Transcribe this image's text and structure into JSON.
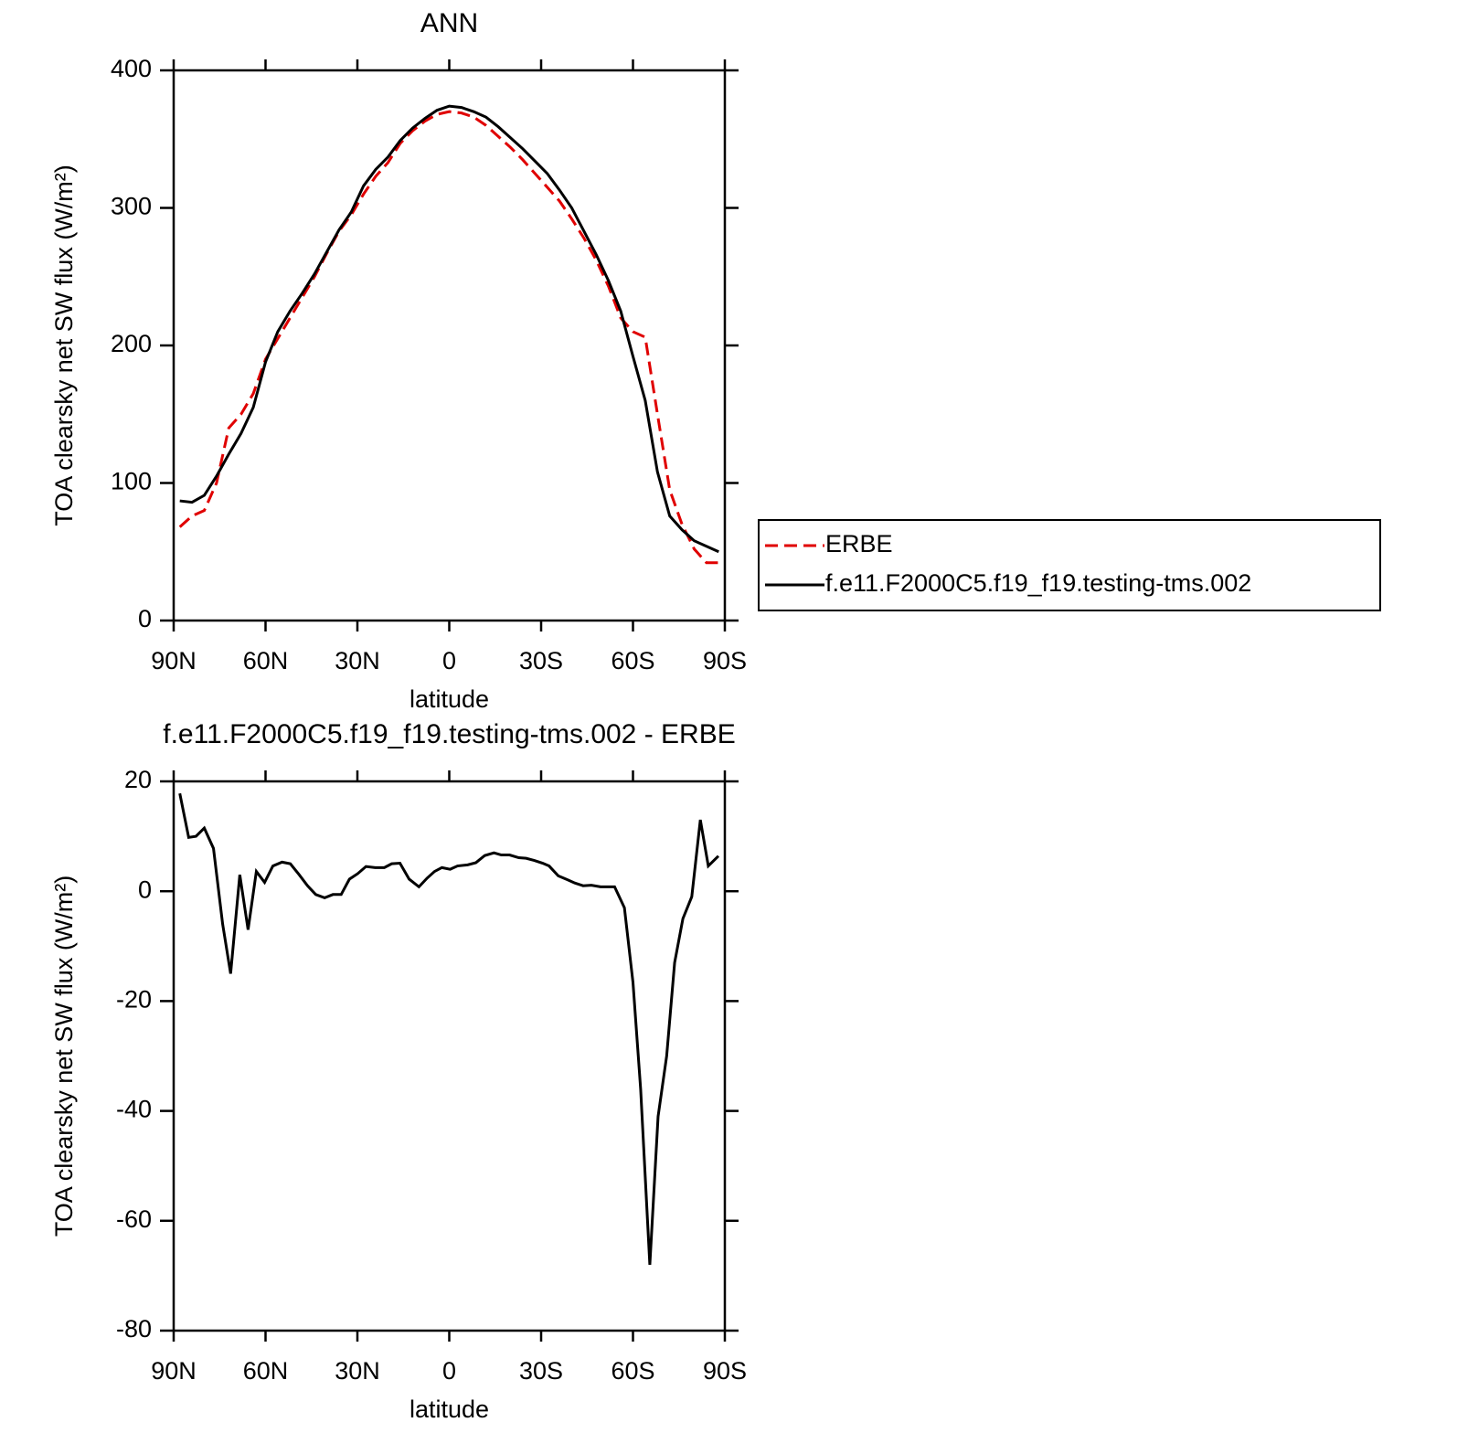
{
  "chart_data": [
    {
      "type": "line",
      "title": "ANN",
      "ylabel": "TOA clearsky net SW flux (W/m²)",
      "xlabel": "latitude",
      "x": [
        88,
        84,
        80,
        76,
        72,
        68,
        64,
        60,
        56,
        52,
        48,
        44,
        40,
        36,
        32,
        28,
        24,
        20,
        16,
        12,
        8,
        4,
        0,
        -4,
        -8,
        -12,
        -16,
        -20,
        -24,
        -28,
        -32,
        -36,
        -40,
        -44,
        -48,
        -52,
        -56,
        -60,
        -64,
        -68,
        -72,
        -76,
        -80,
        -84,
        -88
      ],
      "series": [
        {
          "name": "ERBE",
          "color": "#e00000",
          "dash": true,
          "values": [
            68,
            76,
            80,
            100,
            140,
            150,
            165,
            190,
            205,
            220,
            235,
            250,
            267,
            283,
            295,
            310,
            323,
            333,
            347,
            356,
            363,
            368,
            370,
            369,
            366,
            360,
            352,
            344,
            335,
            325,
            315,
            305,
            292,
            278,
            262,
            243,
            220,
            210,
            206,
            150,
            95,
            70,
            52,
            42,
            42
          ]
        },
        {
          "name": "f.e11.F2000C5.f19_f19.testing-tms.002",
          "color": "#000000",
          "dash": false,
          "values": [
            87,
            86,
            91,
            105,
            121,
            136,
            155,
            188,
            210,
            225,
            238,
            252,
            268,
            284,
            297,
            316,
            328,
            337,
            349,
            358,
            365,
            371,
            374,
            373,
            370,
            366,
            359,
            351,
            343,
            334,
            325,
            313,
            300,
            283,
            266,
            247,
            225,
            192,
            160,
            108,
            76,
            66,
            58,
            54,
            50
          ]
        }
      ],
      "xlim": [
        90,
        -90
      ],
      "xticks": [
        {
          "value": 90,
          "label": "90N"
        },
        {
          "value": 60,
          "label": "60N"
        },
        {
          "value": 30,
          "label": "30N"
        },
        0,
        {
          "value": -30,
          "label": "30S"
        },
        {
          "value": -60,
          "label": "60S"
        },
        {
          "value": -90,
          "label": "90S"
        }
      ],
      "ylim": [
        0,
        400
      ],
      "yticks": [
        0,
        100,
        200,
        300,
        400
      ],
      "legend": "outside right"
    },
    {
      "type": "line",
      "title": "f.e11.F2000C5.f19_f19.testing-tms.002 - ERBE",
      "ylabel": "TOA clearsky net SW flux (W/m²)",
      "xlabel": "latitude",
      "x": [
        88,
        85.1,
        82.7,
        80,
        77,
        74,
        71.4,
        68.4,
        65.7,
        63,
        60.3,
        57.6,
        54.6,
        51.9,
        49,
        46.3,
        43.6,
        40.7,
        38,
        35.3,
        32.6,
        29.9,
        27.2,
        24.2,
        21.2,
        18.8,
        16.1,
        13.1,
        9.9,
        7.2,
        4.8,
        2.4,
        -0.3,
        -2.7,
        -6,
        -8.7,
        -11.6,
        -14.6,
        -17,
        -19.7,
        -22.7,
        -25.1,
        -27.8,
        -30.5,
        -32.6,
        -35.6,
        -38.6,
        -41,
        -43.7,
        -46.4,
        -49.4,
        -54,
        -57.2,
        -60,
        -62.5,
        -65.5,
        -68.2,
        -71,
        -73.6,
        -76.3,
        -79.2,
        -82,
        -84.6,
        -87.9
      ],
      "values": [
        17.8,
        9.8,
        10,
        11.5,
        7.8,
        -6,
        -15,
        3,
        -7,
        3.6,
        1.6,
        4.6,
        5.3,
        5,
        3,
        1,
        -0.6,
        -1.2,
        -0.6,
        -0.6,
        2.2,
        3.2,
        4.5,
        4.3,
        4.3,
        5,
        5.1,
        2.2,
        0.8,
        2.4,
        3.6,
        4.3,
        4,
        4.6,
        4.8,
        5.2,
        6.5,
        7,
        6.6,
        6.6,
        6.1,
        6,
        5.6,
        5.1,
        4.6,
        2.8,
        2.1,
        1.5,
        1,
        1.1,
        0.8,
        0.8,
        -3,
        -16.6,
        -36,
        -68,
        -41,
        -30,
        -13,
        -5,
        -1,
        13,
        4.6,
        6.4
      ],
      "color": "#000000",
      "xlim": [
        90,
        -90
      ],
      "xticks": [
        {
          "value": 90,
          "label": "90N"
        },
        {
          "value": 60,
          "label": "60N"
        },
        {
          "value": 30,
          "label": "30N"
        },
        0,
        {
          "value": -30,
          "label": "30S"
        },
        {
          "value": -60,
          "label": "60S"
        },
        {
          "value": -90,
          "label": "90S"
        }
      ],
      "ylim": [
        -80,
        20
      ],
      "yticks": [
        -80,
        -60,
        -40,
        -20,
        0,
        20
      ]
    }
  ]
}
